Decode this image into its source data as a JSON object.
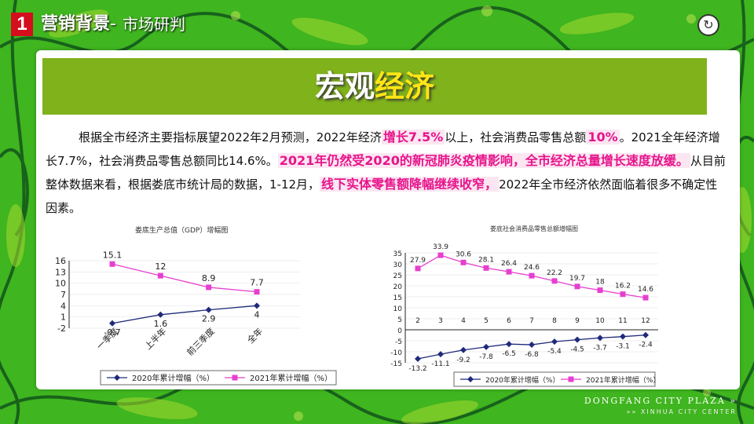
{
  "header": {
    "number": "1",
    "title": "营销背景",
    "separator": "-",
    "subtitle": "市场研判"
  },
  "banner": {
    "title_part1": "宏观",
    "title_part2": "经济"
  },
  "paragraph": {
    "seg1": "根据全市经济主要指标展望2022年2月预测，2022年经济",
    "hl1": "增长7.5%",
    "seg2": "以上，社会消费品零售总额",
    "hl2": "10%",
    "seg3": "。2021全年经济增长7.7%，社会消费品零售总额同比14.6%。",
    "hl3": "2021年仍然受2020的新冠肺炎疫情影响，全市经济总量增长速度放缓。",
    "seg4": "从目前整体数据来看，根据娄底市统计局的数据，1-12月，",
    "hl4": "线下实体零售额降幅继续收窄，",
    "seg5": "2022年全市经济依然面临着很多不确定性因素。"
  },
  "footer": {
    "brand": "DONGFANG CITY PLAZA",
    "arrows": "»",
    "sub_arrows": "»»",
    "sub": "XINHUA CITY CENTER"
  },
  "colors": {
    "green_bg": "#3fb51f",
    "banner": "#80b21c",
    "accent_yellow": "#ffe514",
    "highlight": "#e7148b",
    "series_2020": "#1f2a7a",
    "series_2021": "#e63fd0"
  },
  "chart_data": [
    {
      "type": "line",
      "title": "娄底生产总值（GDP）增幅图",
      "categories": [
        "一季度",
        "上半年",
        "前三季度",
        "全年"
      ],
      "ylim": [
        -2,
        16
      ],
      "yticks": [
        -2,
        1,
        4,
        7,
        10,
        13,
        16
      ],
      "series": [
        {
          "name": "2020年累计增幅（%）",
          "values": [
            -0.7,
            1.6,
            2.9,
            4
          ],
          "color": "#1f2a7a",
          "marker": "diamond"
        },
        {
          "name": "2021年累计增幅（%）",
          "values": [
            15.1,
            12,
            8.9,
            7.7
          ],
          "color": "#e63fd0",
          "marker": "square"
        }
      ],
      "legend": "bottom"
    },
    {
      "type": "line",
      "title": "娄底社会消费品零售总额增幅图",
      "categories": [
        "2",
        "3",
        "4",
        "5",
        "6",
        "7",
        "8",
        "9",
        "10",
        "11",
        "12"
      ],
      "ylim": [
        -15,
        35
      ],
      "yticks": [
        -15,
        -10,
        -5,
        0,
        5,
        10,
        15,
        20,
        25,
        30,
        35
      ],
      "series": [
        {
          "name": "2020年累计增幅（%）",
          "values": [
            -13.2,
            -11.1,
            -9.2,
            -7.8,
            -6.5,
            -6.8,
            -5.4,
            -4.5,
            -3.7,
            -3.1,
            -2.4
          ],
          "color": "#1f2a7a",
          "marker": "diamond"
        },
        {
          "name": "2021年累计增幅（%）",
          "values": [
            27.9,
            33.9,
            30.6,
            28.1,
            26.4,
            24.6,
            22.2,
            19.7,
            18,
            16.2,
            14.6
          ],
          "color": "#e63fd0",
          "marker": "square"
        }
      ],
      "legend": "bottom"
    }
  ]
}
